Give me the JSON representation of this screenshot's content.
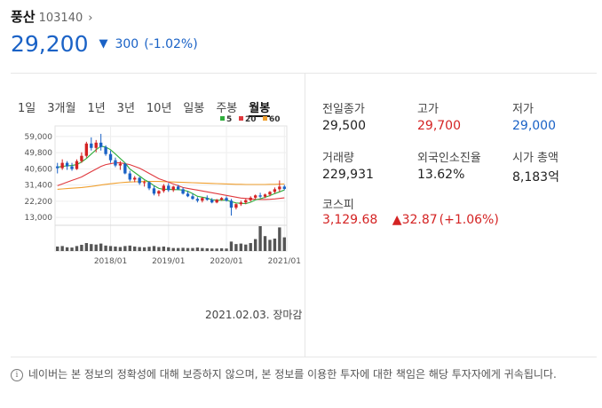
{
  "header": {
    "name": "풍산",
    "code": "103140",
    "price": "29,200",
    "change": "300",
    "change_pct": "(-1.02%)"
  },
  "tabs": [
    "1일",
    "3개월",
    "1년",
    "3년",
    "10년",
    "일봉",
    "주봉",
    "월봉"
  ],
  "active_tab": "월봉",
  "date_note": "2021.02.03. 장마감",
  "stats": {
    "prev_close": {
      "label": "전일종가",
      "value": "29,500"
    },
    "high": {
      "label": "고가",
      "value": "29,700"
    },
    "low": {
      "label": "저가",
      "value": "29,000"
    },
    "volume": {
      "label": "거래량",
      "value": "229,931"
    },
    "foreign": {
      "label": "외국인소진율",
      "value": "13.62%"
    },
    "market_cap": {
      "label": "시가 총액",
      "value": "8,183억"
    }
  },
  "kospi": {
    "label": "코스피",
    "value": "3,129.68",
    "change": "▲32.87",
    "change_pct": "(+1.06%)"
  },
  "footer": "네이버는 본 정보의 정확성에 대해 보증하지 않으며, 본 정보를 이용한 투자에 대한 책임은 해당 투자자에게 귀속됩니다.",
  "colors": {
    "up": "#d42323",
    "down": "#1a62c6",
    "ma5": "#2fae3c",
    "ma20": "#e0393e",
    "ma60": "#f0a030"
  },
  "chart_data": {
    "type": "candlestick",
    "ylim": [
      9000,
      65000
    ],
    "yticks": [
      "59,000",
      "49,800",
      "40,600",
      "31,400",
      "22,200",
      "13,000"
    ],
    "ytick_values": [
      59000,
      49800,
      40600,
      31400,
      22200,
      13000
    ],
    "xticks": [
      {
        "label": "2018/01",
        "index": 11
      },
      {
        "label": "2019/01",
        "index": 23
      },
      {
        "label": "2020/01",
        "index": 35
      },
      {
        "label": "2021/01",
        "index": 47
      }
    ],
    "legend": [
      {
        "label": "5",
        "color": "#2fae3c"
      },
      {
        "label": "20",
        "color": "#e0393e"
      },
      {
        "label": "60",
        "color": "#f0a030"
      }
    ],
    "ohlc": [
      [
        42000,
        44000,
        38000,
        41000
      ],
      [
        41000,
        46000,
        40000,
        44000
      ],
      [
        44000,
        45000,
        40000,
        42000
      ],
      [
        42000,
        44000,
        39500,
        40500
      ],
      [
        40500,
        46000,
        40000,
        45000
      ],
      [
        45000,
        50000,
        44000,
        48000
      ],
      [
        48000,
        56000,
        47000,
        55000
      ],
      [
        55000,
        58500,
        51000,
        52500
      ],
      [
        52500,
        57000,
        50000,
        55500
      ],
      [
        55500,
        60500,
        51000,
        53000
      ],
      [
        53000,
        54000,
        48000,
        49000
      ],
      [
        49000,
        51000,
        44000,
        45500
      ],
      [
        45500,
        47000,
        41500,
        42500
      ],
      [
        42500,
        45000,
        40000,
        43500
      ],
      [
        43500,
        44000,
        37500,
        38000
      ],
      [
        38000,
        39500,
        33500,
        34500
      ],
      [
        34500,
        36500,
        33000,
        35500
      ],
      [
        35500,
        36000,
        31500,
        32500
      ],
      [
        32500,
        34000,
        30500,
        33000
      ],
      [
        33000,
        33500,
        28500,
        29500
      ],
      [
        29500,
        31000,
        25500,
        26500
      ],
      [
        26500,
        28500,
        25000,
        28000
      ],
      [
        28000,
        32000,
        27000,
        31000
      ],
      [
        31000,
        32500,
        27500,
        28500
      ],
      [
        28500,
        31000,
        27500,
        30500
      ],
      [
        30500,
        31500,
        28500,
        29000
      ],
      [
        29000,
        30000,
        26000,
        26500
      ],
      [
        26500,
        28000,
        24500,
        25000
      ],
      [
        25000,
        26500,
        23000,
        23500
      ],
      [
        23500,
        24500,
        21500,
        22500
      ],
      [
        22500,
        24500,
        21500,
        24000
      ],
      [
        24000,
        25500,
        22500,
        23000
      ],
      [
        23000,
        24000,
        21000,
        21500
      ],
      [
        21500,
        23500,
        21000,
        23000
      ],
      [
        23000,
        24500,
        22500,
        24000
      ],
      [
        24000,
        25000,
        22000,
        22500
      ],
      [
        22500,
        23500,
        14000,
        18500
      ],
      [
        18500,
        21000,
        17500,
        20500
      ],
      [
        20500,
        22500,
        19500,
        21500
      ],
      [
        21500,
        23500,
        20500,
        22800
      ],
      [
        22800,
        25000,
        22000,
        24200
      ],
      [
        24200,
        26000,
        23500,
        25500
      ],
      [
        25500,
        27000,
        24000,
        24800
      ],
      [
        24800,
        26500,
        24000,
        26000
      ],
      [
        26000,
        28000,
        25000,
        27500
      ],
      [
        27500,
        30000,
        26500,
        29000
      ],
      [
        29000,
        34000,
        27500,
        30500
      ],
      [
        30500,
        31500,
        28500,
        29200
      ]
    ],
    "ma5": [
      41500,
      42000,
      42300,
      42500,
      43000,
      44500,
      46500,
      49000,
      51500,
      53500,
      53000,
      51500,
      49000,
      46500,
      44000,
      40500,
      38500,
      36500,
      34500,
      33000,
      31000,
      29500,
      29000,
      29000,
      28800,
      28800,
      28500,
      27800,
      26500,
      25000,
      24500,
      24000,
      23000,
      22800,
      22700,
      22800,
      21900,
      21200,
      21000,
      20800,
      21600,
      22900,
      23600,
      24400,
      25400,
      26500,
      27500,
      28600
    ],
    "ma20": [
      31000,
      32000,
      33000,
      34000,
      35000,
      36000,
      37500,
      39000,
      40500,
      42000,
      43000,
      43500,
      44000,
      44000,
      43500,
      43000,
      42000,
      41000,
      39500,
      38000,
      36500,
      35000,
      34000,
      33000,
      32000,
      31000,
      30000,
      29500,
      29000,
      28500,
      28000,
      27500,
      27000,
      26500,
      26000,
      25500,
      25000,
      24500,
      24000,
      23800,
      23500,
      23300,
      23200,
      23200,
      23300,
      23500,
      23800,
      24100
    ],
    "ma60": [
      29000,
      29200,
      29400,
      29600,
      29800,
      30000,
      30300,
      30600,
      31000,
      31400,
      31800,
      32100,
      32400,
      32700,
      32900,
      33100,
      33200,
      33300,
      33400,
      33400,
      33400,
      33400,
      33300,
      33200,
      33100,
      33000,
      32900,
      32800,
      32700,
      32600,
      32500,
      32400,
      32300,
      32200,
      32100,
      32000,
      31900,
      31800,
      31800,
      31700,
      31700,
      31700,
      31700,
      31700,
      31800,
      31800,
      31900,
      32000
    ],
    "volume": [
      0.18,
      0.2,
      0.15,
      0.14,
      0.2,
      0.25,
      0.32,
      0.28,
      0.26,
      0.3,
      0.22,
      0.2,
      0.18,
      0.16,
      0.2,
      0.22,
      0.18,
      0.16,
      0.15,
      0.17,
      0.2,
      0.16,
      0.18,
      0.15,
      0.12,
      0.12,
      0.13,
      0.12,
      0.12,
      0.14,
      0.12,
      0.11,
      0.1,
      0.1,
      0.11,
      0.1,
      0.38,
      0.28,
      0.3,
      0.26,
      0.32,
      0.48,
      1.0,
      0.6,
      0.45,
      0.5,
      0.95,
      0.55
    ]
  }
}
